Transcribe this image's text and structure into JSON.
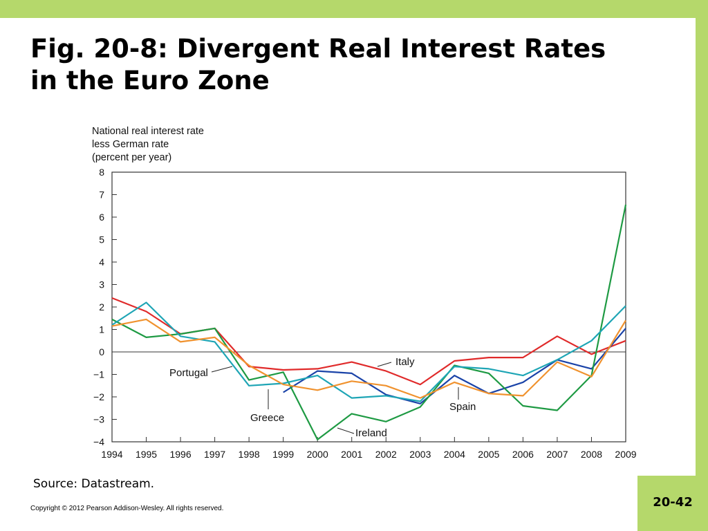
{
  "slide": {
    "title_line1": "Fig. 20-8: Divergent Real Interest Rates",
    "title_line2": "in the Euro Zone",
    "source": "Source: Datastream.",
    "copyright": "Copyright © 2012 Pearson Addison-Wesley. All rights reserved.",
    "page_number": "20-42"
  },
  "colors": {
    "accent_bar": "#b5d86b",
    "axis": "#333333",
    "Italy": "#e02a2a",
    "Greece": "#1a43a8",
    "Ireland": "#1e9a43",
    "Portugal": "#1ea5b5",
    "Spain": "#f0922e"
  },
  "chart_data": {
    "type": "line",
    "title": "",
    "ylabel_lines": [
      "National real interest rate",
      "less German rate",
      "(percent per year)"
    ],
    "xlabel": "",
    "x": [
      1994,
      1995,
      1996,
      1997,
      1998,
      1999,
      2000,
      2001,
      2002,
      2003,
      2004,
      2005,
      2006,
      2007,
      2008,
      2009
    ],
    "y_tick_labels": [
      "8",
      "7",
      "6",
      "5",
      "4",
      "3",
      "2",
      "1",
      "0",
      "−1",
      "−2",
      "−3",
      "−4"
    ],
    "y_tick_values": [
      8,
      7,
      6,
      5,
      4,
      3,
      2,
      1,
      0,
      -1,
      -2,
      -3,
      -4
    ],
    "ylim": [
      -4,
      8
    ],
    "xlim": [
      1994,
      2009
    ],
    "grid": false,
    "series": [
      {
        "name": "Italy",
        "x": [
          1994,
          1995,
          1996,
          1997,
          1998,
          1999,
          2000,
          2001,
          2002,
          2003,
          2004,
          2005,
          2006,
          2007,
          2008,
          2009
        ],
        "values": [
          2.4,
          1.8,
          0.8,
          1.05,
          -0.65,
          -0.8,
          -0.75,
          -0.45,
          -0.85,
          -1.45,
          -0.4,
          -0.25,
          -0.25,
          0.7,
          -0.1,
          0.5
        ]
      },
      {
        "name": "Greece",
        "x": [
          1999,
          2000,
          2001,
          2002,
          2003,
          2004,
          2005,
          2006,
          2007,
          2008,
          2009
        ],
        "values": [
          -1.8,
          -0.85,
          -0.95,
          -1.9,
          -2.3,
          -1.05,
          -1.85,
          -1.35,
          -0.35,
          -0.75,
          1.05
        ]
      },
      {
        "name": "Ireland",
        "x": [
          1994,
          1995,
          1996,
          1997,
          1998,
          1999,
          2000,
          2001,
          2002,
          2003,
          2004,
          2005,
          2006,
          2007,
          2008,
          2009
        ],
        "values": [
          1.45,
          0.65,
          0.8,
          1.05,
          -1.25,
          -0.9,
          -3.9,
          -2.75,
          -3.1,
          -2.45,
          -0.6,
          -0.95,
          -2.4,
          -2.6,
          -1.05,
          6.55
        ]
      },
      {
        "name": "Portugal",
        "x": [
          1994,
          1995,
          1996,
          1997,
          1998,
          1999,
          2000,
          2001,
          2002,
          2003,
          2004,
          2005,
          2006,
          2007,
          2008,
          2009
        ],
        "values": [
          1.2,
          2.2,
          0.7,
          0.45,
          -1.5,
          -1.4,
          -1.05,
          -2.05,
          -1.95,
          -2.2,
          -0.65,
          -0.75,
          -1.05,
          -0.35,
          0.5,
          2.05
        ]
      },
      {
        "name": "Spain",
        "x": [
          1994,
          1995,
          1996,
          1997,
          1998,
          1999,
          2000,
          2001,
          2002,
          2003,
          2004,
          2005,
          2006,
          2007,
          2008,
          2009
        ],
        "values": [
          1.15,
          1.45,
          0.45,
          0.65,
          -0.6,
          -1.45,
          -1.7,
          -1.3,
          -1.5,
          -2.05,
          -1.35,
          -1.85,
          -1.95,
          -0.45,
          -1.1,
          1.4
        ]
      }
    ],
    "annotations": [
      {
        "text": "Italy",
        "series": "Italy"
      },
      {
        "text": "Portugal",
        "series": "Portugal"
      },
      {
        "text": "Greece",
        "series": "Greece"
      },
      {
        "text": "Ireland",
        "series": "Ireland"
      },
      {
        "text": "Spain",
        "series": "Spain"
      }
    ]
  }
}
